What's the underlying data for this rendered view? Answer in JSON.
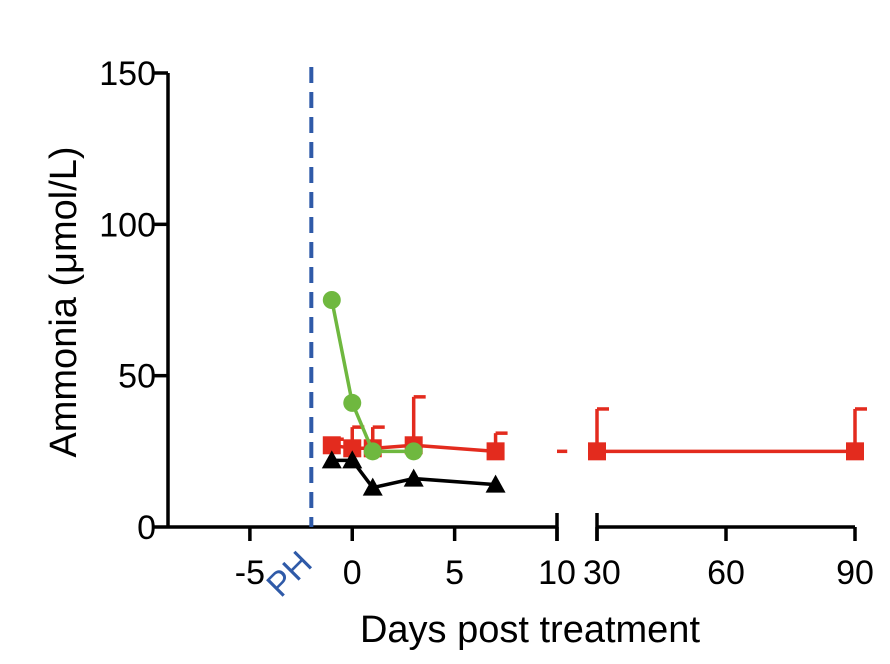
{
  "chart_data": {
    "type": "line",
    "xlabel": "Days post treatment",
    "ylabel": "Ammonia (μmol/L)",
    "ylim": [
      0,
      150
    ],
    "y_ticks": [
      0,
      50,
      100,
      150
    ],
    "y_tick_labels": [
      "0",
      "50",
      "100",
      "150"
    ],
    "x_segments": [
      {
        "range": [
          -9,
          10
        ],
        "ticks": [
          -5,
          0,
          5,
          10
        ],
        "tick_labels": [
          "-5",
          "0",
          "5",
          "10"
        ]
      },
      {
        "range": [
          30,
          90
        ],
        "ticks": [
          30,
          60,
          90
        ],
        "tick_labels": [
          "30",
          "60",
          "90"
        ]
      }
    ],
    "broken_x_axis": true,
    "grid": false,
    "legend": "none",
    "reference_line": {
      "x": -2,
      "label": "PH",
      "style": "dashed",
      "color": "#2f5aa8"
    },
    "series": [
      {
        "color": "#e32b1e",
        "marker": "square",
        "error_bars": "upper",
        "x": [
          -1,
          0,
          1,
          3,
          7,
          30,
          90
        ],
        "y": [
          27,
          26,
          26,
          27,
          25,
          25,
          25
        ],
        "error": [
          2,
          7,
          7,
          16,
          6,
          14,
          14
        ]
      },
      {
        "color": "#e32b1e",
        "marker": "none",
        "x": [
          10,
          10.5
        ],
        "y": [
          25,
          25
        ]
      },
      {
        "color": "#6fb83f",
        "marker": "circle",
        "x": [
          -1,
          0,
          1,
          3
        ],
        "y": [
          75,
          41,
          25,
          25
        ]
      },
      {
        "color": "#000000",
        "marker": "triangle",
        "x": [
          -1,
          0,
          1,
          3,
          7
        ],
        "y": [
          22,
          22,
          13,
          16,
          14
        ]
      }
    ]
  }
}
